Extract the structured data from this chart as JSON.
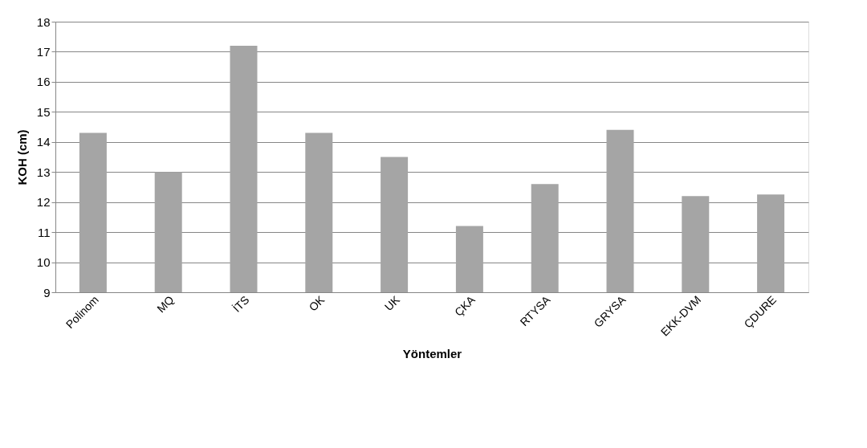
{
  "chart_data": {
    "type": "bar",
    "xlabel": "Yöntemler",
    "ylabel": "KOH (cm)",
    "categories": [
      "Polinom",
      "MQ",
      "İTS",
      "OK",
      "UK",
      "ÇKA",
      "RTYSA",
      "GRYSA",
      "EKK-DVM",
      "ÇDURE"
    ],
    "values": [
      14.3,
      13.0,
      17.2,
      14.3,
      13.5,
      11.2,
      12.6,
      14.4,
      12.2,
      12.25
    ],
    "color": "#a5a5a5",
    "ylim": [
      9,
      18
    ],
    "yticks": [
      9,
      10,
      11,
      12,
      13,
      14,
      15,
      16,
      17,
      18
    ],
    "grid": "y"
  }
}
